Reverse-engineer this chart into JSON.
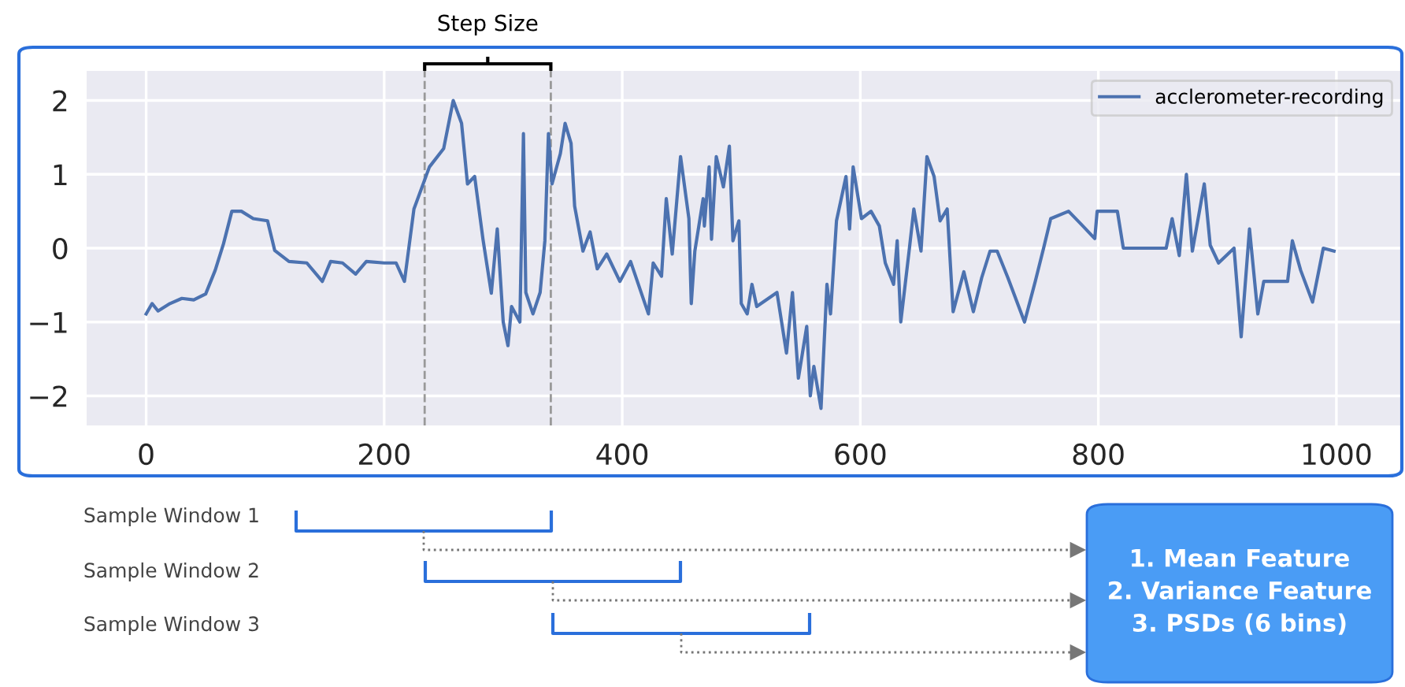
{
  "chart_data": {
    "type": "line",
    "x": [
      0,
      5,
      10,
      20,
      30,
      40,
      50,
      58,
      65,
      72,
      80,
      90,
      102,
      108,
      120,
      135,
      148,
      155,
      165,
      176,
      185,
      200,
      210,
      217,
      225,
      238,
      250,
      258,
      265,
      270,
      276,
      283,
      290,
      295,
      300,
      304,
      307,
      314,
      317,
      319,
      325,
      331,
      335,
      338,
      341,
      348,
      352,
      357,
      360,
      367,
      373,
      379,
      387,
      398,
      407,
      422,
      426,
      433,
      437,
      442,
      449,
      456,
      458,
      461,
      468,
      469,
      473,
      475,
      479,
      485,
      490,
      493,
      498,
      500,
      505,
      509,
      513,
      530,
      538,
      543,
      548,
      555,
      558,
      561,
      567,
      572,
      575,
      580,
      588,
      591,
      594,
      601,
      609,
      616,
      621,
      628,
      631,
      634,
      641,
      645,
      651,
      656,
      662,
      667,
      673,
      678,
      687,
      695,
      702,
      709,
      715,
      724,
      738,
      747,
      754,
      760,
      775,
      787,
      797,
      799,
      816,
      821,
      857,
      862,
      868,
      874,
      879,
      889,
      894,
      901,
      914,
      920,
      927,
      934,
      939,
      959,
      963,
      970,
      980,
      989,
      998
    ],
    "series": [
      {
        "name": "acclerometer-recording",
        "color": "#4c72b0",
        "values": [
          -0.89,
          -0.75,
          -0.85,
          -0.75,
          -0.68,
          -0.7,
          -0.62,
          -0.3,
          0.06,
          0.5,
          0.5,
          0.4,
          0.37,
          -0.03,
          -0.18,
          -0.2,
          -0.45,
          -0.18,
          -0.2,
          -0.35,
          -0.18,
          -0.2,
          -0.2,
          -0.45,
          0.53,
          1.1,
          1.35,
          2.0,
          1.69,
          0.87,
          0.97,
          0.12,
          -0.61,
          0.26,
          -1.0,
          -1.32,
          -0.79,
          -1.0,
          1.55,
          -0.6,
          -0.89,
          -0.6,
          0.1,
          1.55,
          0.87,
          1.28,
          1.69,
          1.42,
          0.57,
          -0.04,
          0.22,
          -0.28,
          -0.08,
          -0.45,
          -0.18,
          -0.89,
          -0.2,
          -0.38,
          0.67,
          -0.08,
          1.24,
          0.4,
          -0.75,
          -0.04,
          0.67,
          0.3,
          1.1,
          0.12,
          1.24,
          0.83,
          1.38,
          0.1,
          0.37,
          -0.75,
          -0.89,
          -0.49,
          -0.79,
          -0.6,
          -1.42,
          -0.6,
          -1.76,
          -1.06,
          -2.0,
          -1.6,
          -2.17,
          -0.49,
          -0.89,
          0.37,
          0.97,
          0.26,
          1.1,
          0.4,
          0.5,
          0.3,
          -0.2,
          -0.49,
          0.1,
          -1.0,
          -0.04,
          0.53,
          -0.04,
          1.24,
          0.97,
          0.37,
          0.53,
          -0.86,
          -0.32,
          -0.86,
          -0.4,
          -0.04,
          -0.04,
          -0.4,
          -1.0,
          -0.45,
          0.0,
          0.4,
          0.5,
          0.3,
          0.13,
          0.5,
          0.5,
          0.0,
          0.0,
          0.4,
          -0.1,
          1.0,
          -0.04,
          0.87,
          0.04,
          -0.2,
          0.0,
          -1.2,
          0.26,
          -0.89,
          -0.45,
          -0.45,
          0.1,
          -0.3,
          -0.73,
          0.0,
          -0.04
        ]
      }
    ],
    "xlim": [
      -50,
      1055
    ],
    "ylim": [
      -2.4,
      2.4
    ],
    "xticks": [
      0,
      200,
      400,
      600,
      800,
      1000
    ],
    "yticks": [
      {
        "value": -2,
        "label": "−2"
      },
      {
        "value": -1,
        "label": "−1"
      },
      0,
      1,
      2
    ],
    "grid": true,
    "legend": "top right",
    "ref_lines": [
      {
        "axis": "x",
        "value": 234,
        "color": "#999999",
        "line_style": "dashed"
      },
      {
        "axis": "x",
        "value": 340,
        "color": "#999999",
        "line_style": "dashed"
      }
    ],
    "annotations": [
      "Step Size",
      "Sample Window 1",
      "Sample Window 2",
      "Sample Window 3",
      "1. Mean Feature\n2. Variance Feature\n3. PSDs (6 bins)"
    ]
  }
}
